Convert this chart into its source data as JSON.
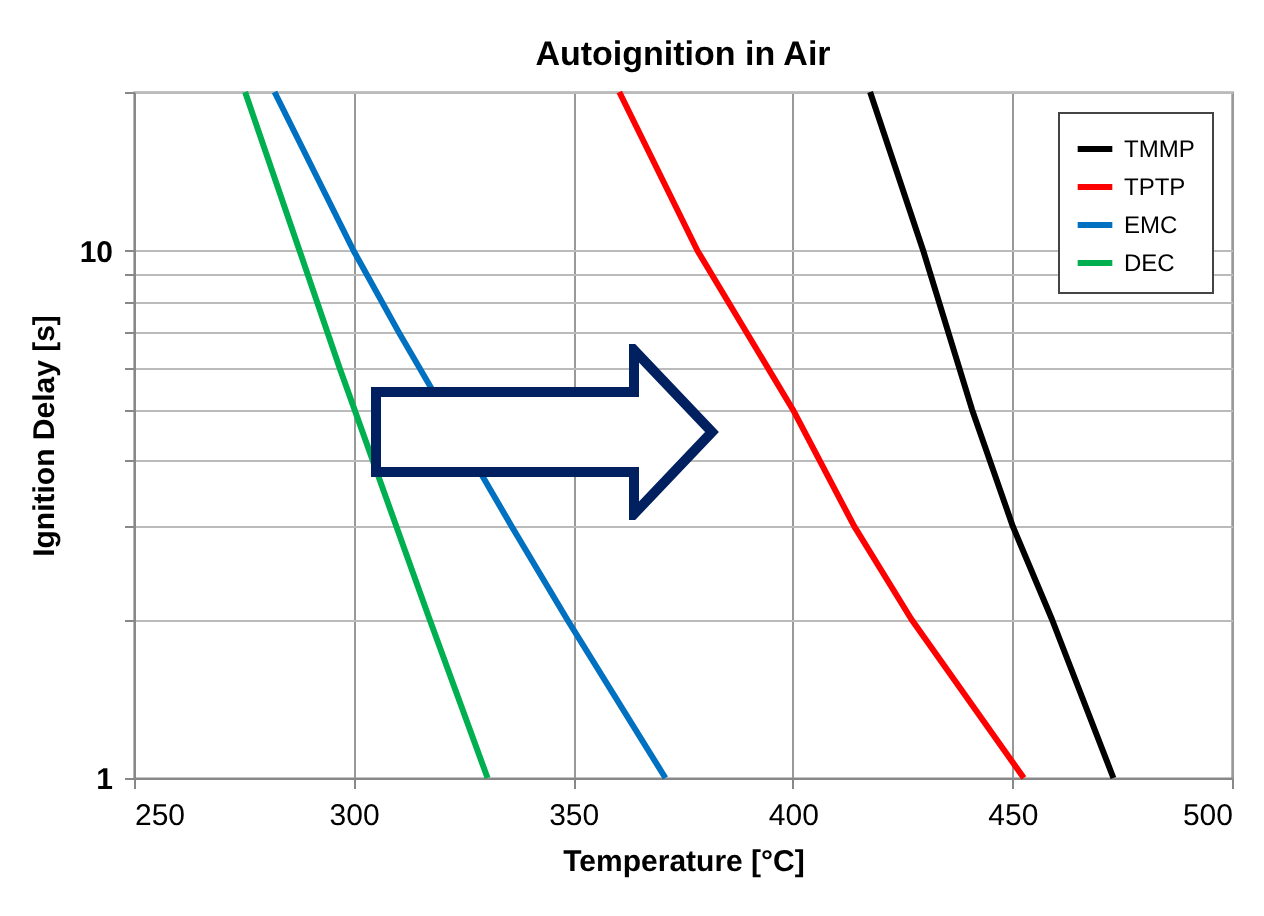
{
  "chart_data": {
    "type": "line",
    "title": "Autoignition in Air",
    "xlabel": "Temperature [°C]",
    "ylabel": "Ignition Delay [s]",
    "xlim": [
      250,
      500
    ],
    "xticks": [
      250,
      300,
      350,
      400,
      450,
      500
    ],
    "ylim": [
      1,
      20
    ],
    "yticks": [
      1,
      {
        "value": 2,
        "label": null
      },
      {
        "value": 3,
        "label": null
      },
      {
        "value": 4,
        "label": null
      },
      {
        "value": 5,
        "label": null
      },
      {
        "value": 6,
        "label": null
      },
      {
        "value": 7,
        "label": null
      },
      {
        "value": 8,
        "label": null
      },
      {
        "value": 9,
        "label": null
      },
      10,
      {
        "value": 20,
        "label": null
      }
    ],
    "log": "y",
    "grid": true,
    "legend": "top right",
    "marker": "none",
    "line_style": "solid",
    "series": [
      {
        "name": "TMMP",
        "color": "#000000",
        "x": [
          417.6,
          429.7,
          440.8,
          450.1,
          459,
          473
        ],
        "values": [
          20,
          10,
          5,
          3,
          2,
          1
        ]
      },
      {
        "name": "TPTP",
        "color": "#ff0000",
        "x": [
          360.5,
          378.3,
          400,
          414,
          427,
          452.6
        ],
        "values": [
          20,
          10,
          5,
          3,
          2,
          1
        ]
      },
      {
        "name": "EMC",
        "color": "#0070c0",
        "x": [
          282,
          300,
          310.3,
          336,
          348.6,
          371
        ],
        "values": [
          20,
          10,
          7,
          3,
          2,
          1
        ]
      },
      {
        "name": "DEC",
        "color": "#00b050",
        "x": [
          275.3,
          287.7,
          296.8,
          317.3,
          330.5
        ],
        "values": [
          20,
          10,
          6,
          2,
          1
        ]
      }
    ]
  }
}
